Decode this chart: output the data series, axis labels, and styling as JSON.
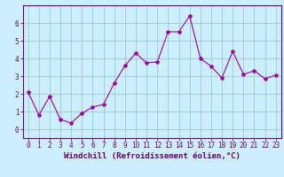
{
  "x": [
    0,
    1,
    2,
    3,
    4,
    5,
    6,
    7,
    8,
    9,
    10,
    11,
    12,
    13,
    14,
    15,
    16,
    17,
    18,
    19,
    20,
    21,
    22,
    23
  ],
  "y": [
    2.1,
    0.8,
    1.85,
    0.55,
    0.35,
    0.9,
    1.25,
    1.4,
    2.6,
    3.6,
    4.3,
    3.75,
    3.8,
    5.5,
    5.5,
    6.4,
    4.0,
    3.55,
    2.9,
    4.4,
    3.1,
    3.3,
    2.85,
    3.05
  ],
  "line_color": "#990099",
  "marker": "*",
  "marker_size": 3,
  "bg_color": "#cceeff",
  "grid_color": "#99cccc",
  "xlabel": "Windchill (Refroidissement éolien,°C)",
  "xlim": [
    -0.5,
    23.5
  ],
  "ylim": [
    -0.5,
    7.0
  ],
  "yticks": [
    0,
    1,
    2,
    3,
    4,
    5,
    6
  ],
  "xticks": [
    0,
    1,
    2,
    3,
    4,
    5,
    6,
    7,
    8,
    9,
    10,
    11,
    12,
    13,
    14,
    15,
    16,
    17,
    18,
    19,
    20,
    21,
    22,
    23
  ],
  "tick_label_size": 5.5,
  "xlabel_size": 6.5,
  "line_width": 0.8,
  "spine_color": "#660066",
  "text_color": "#660066"
}
